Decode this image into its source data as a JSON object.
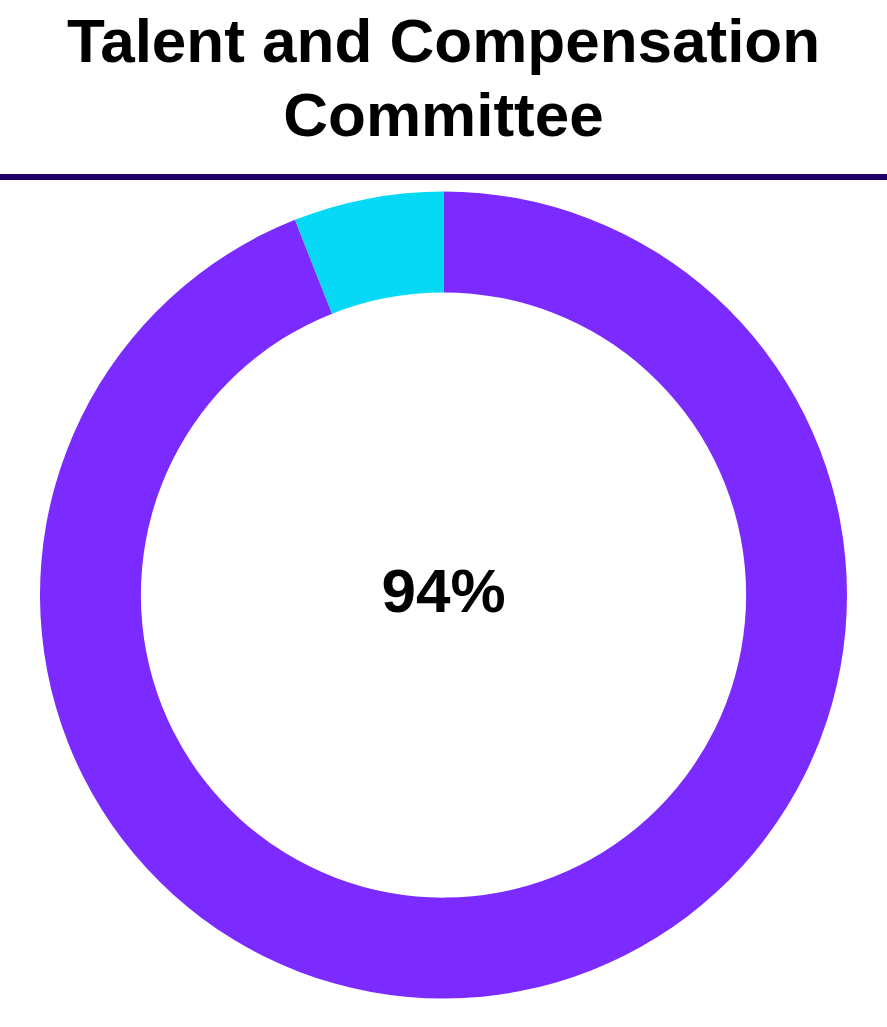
{
  "chart_data": {
    "type": "donut",
    "title": "Talent and Compensation Committee",
    "categories": [
      null,
      null
    ],
    "values": [
      94,
      6
    ],
    "colors": [
      "#7b2bff",
      "#05d9f5"
    ],
    "value_labels": [
      "94%",
      null
    ],
    "legend": false
  }
}
